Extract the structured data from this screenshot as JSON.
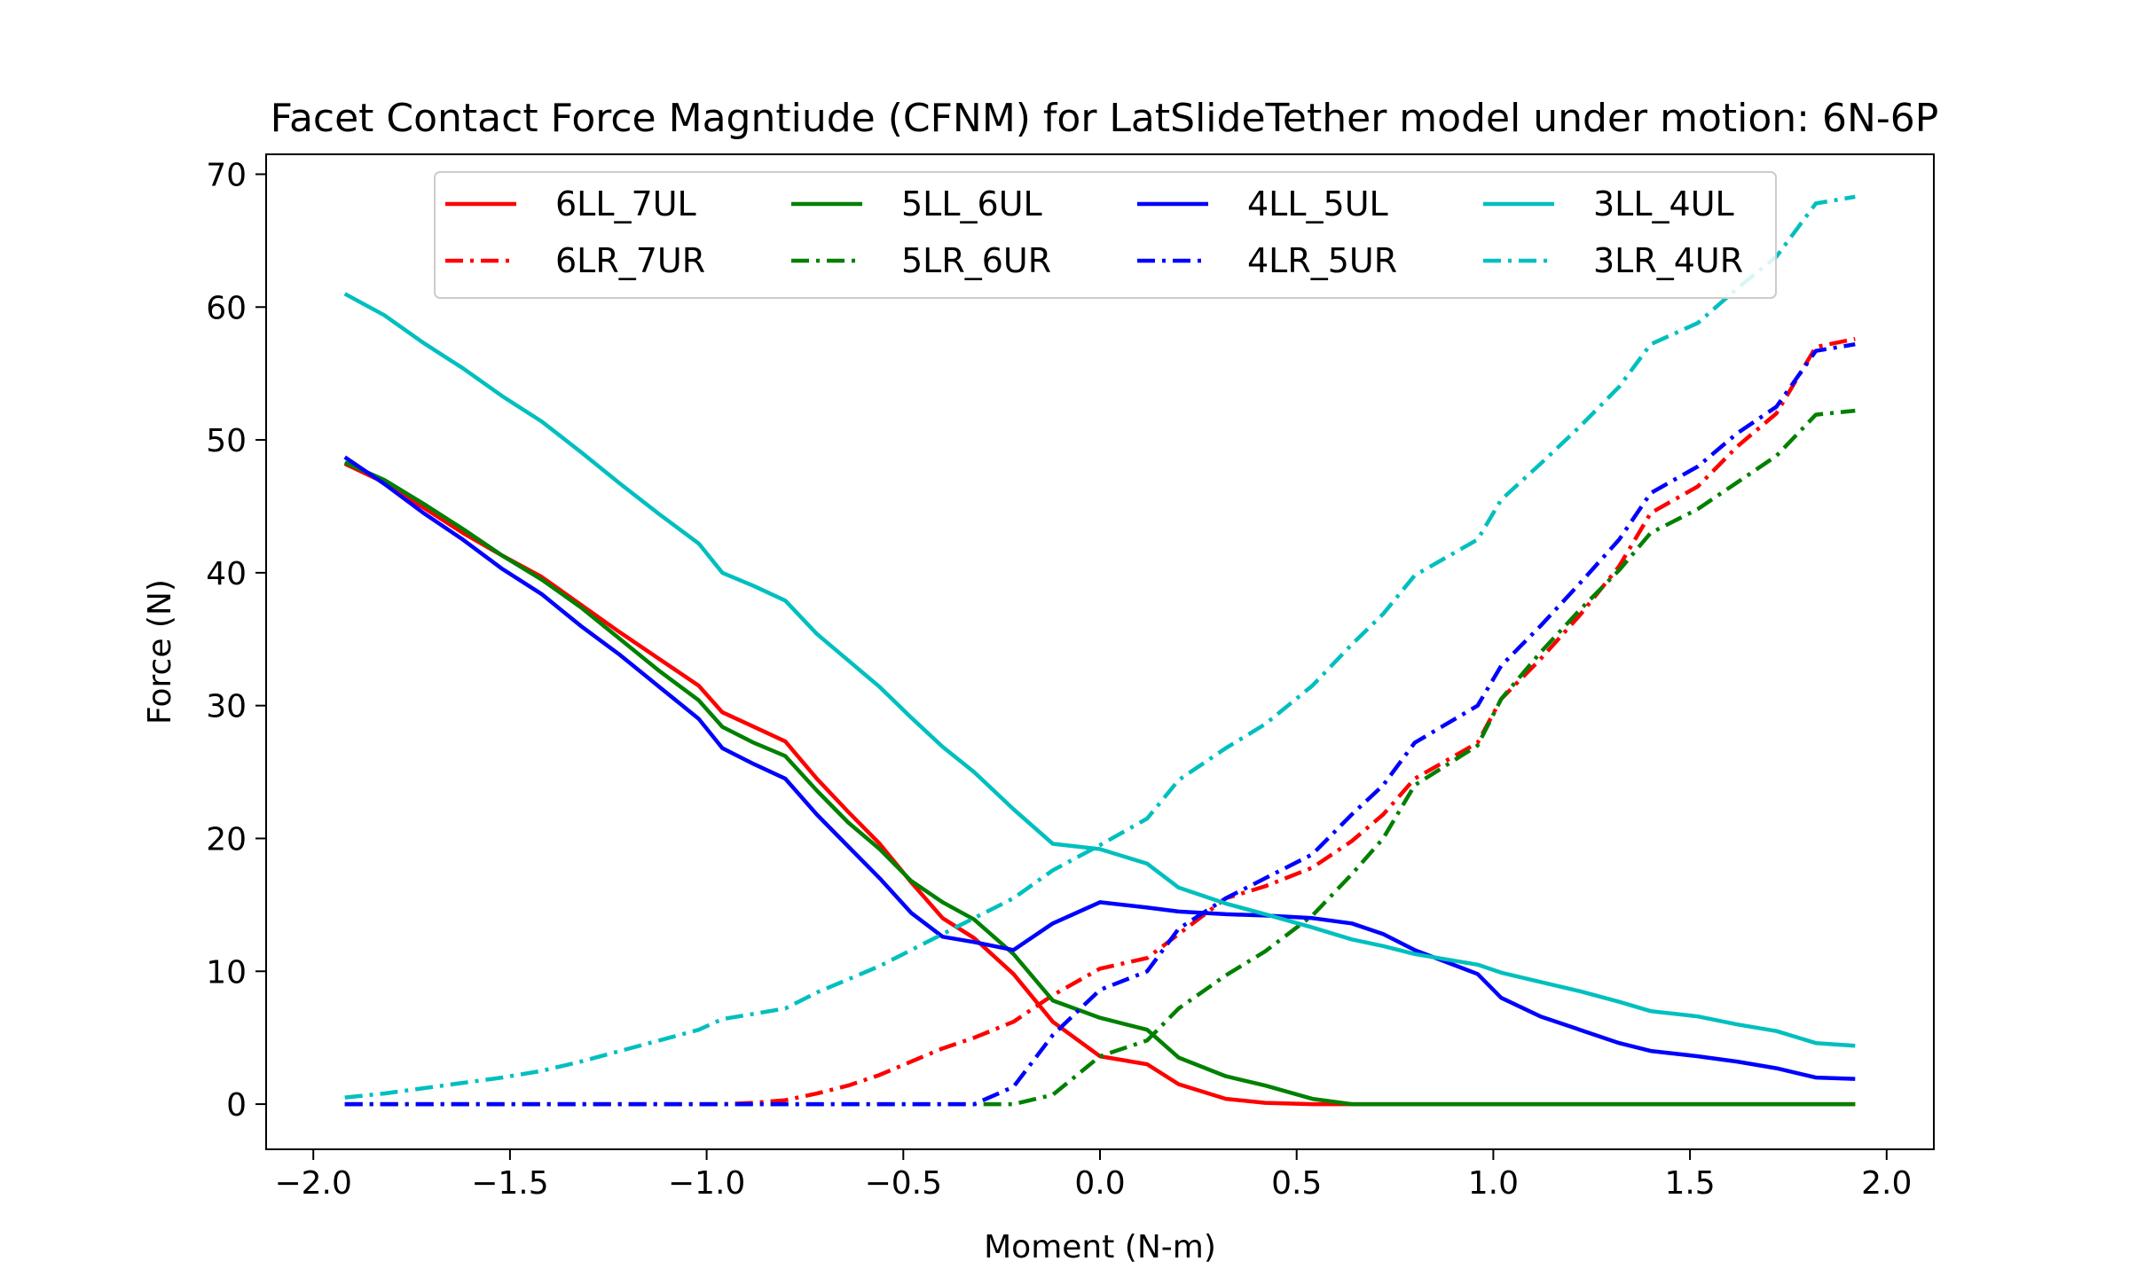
{
  "chart_data": {
    "type": "line",
    "title": "Facet Contact Force Magntiude (CFNM) for LatSlideTether model under motion: 6N-6P",
    "xlabel": "Moment (N-m)",
    "ylabel": "Force (N)",
    "xlim": [
      -2.12,
      2.12
    ],
    "ylim": [
      -3.4,
      71.5
    ],
    "xticks": [
      -2.0,
      -1.5,
      -1.0,
      -0.5,
      0.0,
      0.5,
      1.0,
      1.5,
      2.0
    ],
    "xtick_labels": [
      "−2.0",
      "−1.5",
      "−1.0",
      "−0.5",
      "0.0",
      "0.5",
      "1.0",
      "1.5",
      "2.0"
    ],
    "yticks": [
      0,
      10,
      20,
      30,
      40,
      50,
      60,
      70
    ],
    "ytick_labels": [
      "0",
      "10",
      "20",
      "30",
      "40",
      "50",
      "60",
      "70"
    ],
    "grid": false,
    "legend_position": "top-center",
    "x": [
      -1.92,
      -1.82,
      -1.72,
      -1.62,
      -1.52,
      -1.42,
      -1.32,
      -1.22,
      -1.12,
      -1.02,
      -0.96,
      -0.88,
      -0.8,
      -0.72,
      -0.64,
      -0.56,
      -0.48,
      -0.4,
      -0.32,
      -0.22,
      -0.12,
      0.0,
      0.12,
      0.2,
      0.32,
      0.42,
      0.54,
      0.64,
      0.72,
      0.8,
      0.96,
      1.02,
      1.12,
      1.22,
      1.32,
      1.4,
      1.52,
      1.62,
      1.72,
      1.82,
      1.92
    ],
    "series": [
      {
        "name": "6LL_7UL",
        "color": "#ff0000",
        "dash": "solid",
        "values": [
          48.2,
          46.8,
          44.9,
          43.0,
          41.3,
          39.7,
          37.6,
          35.5,
          33.5,
          31.5,
          29.5,
          28.4,
          27.3,
          24.5,
          22.0,
          19.6,
          16.7,
          14.0,
          12.5,
          9.8,
          6.2,
          3.6,
          3.0,
          1.5,
          0.4,
          0.1,
          0.0,
          0.0,
          0.0,
          0.0,
          0.0,
          0.0,
          0.0,
          0.0,
          0.0,
          0.0,
          0.0,
          0.0,
          0.0,
          0.0,
          0.0
        ]
      },
      {
        "name": "6LR_7UR",
        "color": "#ff0000",
        "dash": "dashdot",
        "values": [
          0.0,
          0.0,
          0.0,
          0.0,
          0.0,
          0.0,
          0.0,
          0.0,
          0.0,
          0.0,
          0.0,
          0.1,
          0.3,
          0.8,
          1.4,
          2.2,
          3.2,
          4.2,
          5.0,
          6.2,
          8.2,
          10.2,
          11.0,
          12.8,
          15.5,
          16.4,
          17.8,
          19.8,
          21.8,
          24.5,
          27.2,
          30.5,
          33.5,
          36.8,
          40.5,
          44.5,
          46.5,
          49.5,
          52.0,
          57.0,
          57.6
        ]
      },
      {
        "name": "5LL_6UL",
        "color": "#008000",
        "dash": "solid",
        "values": [
          48.3,
          47.0,
          45.2,
          43.3,
          41.3,
          39.5,
          37.4,
          35.0,
          32.6,
          30.4,
          28.4,
          27.2,
          26.2,
          23.6,
          21.2,
          19.2,
          16.8,
          15.2,
          13.9,
          11.3,
          7.8,
          6.5,
          5.6,
          3.5,
          2.1,
          1.4,
          0.4,
          0.0,
          0.0,
          0.0,
          0.0,
          0.0,
          0.0,
          0.0,
          0.0,
          0.0,
          0.0,
          0.0,
          0.0,
          0.0,
          0.0
        ]
      },
      {
        "name": "5LR_6UR",
        "color": "#008000",
        "dash": "dashdot",
        "values": [
          0.0,
          0.0,
          0.0,
          0.0,
          0.0,
          0.0,
          0.0,
          0.0,
          0.0,
          0.0,
          0.0,
          0.0,
          0.0,
          0.0,
          0.0,
          0.0,
          0.0,
          0.0,
          0.0,
          0.0,
          0.7,
          3.6,
          4.8,
          7.2,
          9.7,
          11.5,
          14.2,
          17.3,
          20.0,
          24.0,
          27.0,
          30.5,
          34.0,
          37.2,
          40.2,
          43.0,
          44.8,
          46.8,
          48.8,
          51.9,
          52.2
        ]
      },
      {
        "name": "4LL_5UL",
        "color": "#0000ff",
        "dash": "solid",
        "values": [
          48.7,
          46.7,
          44.5,
          42.5,
          40.3,
          38.4,
          36.0,
          33.8,
          31.4,
          29.0,
          26.8,
          25.6,
          24.5,
          21.8,
          19.4,
          17.0,
          14.4,
          12.6,
          12.2,
          11.6,
          13.6,
          15.2,
          14.8,
          14.5,
          14.3,
          14.2,
          14.0,
          13.6,
          12.8,
          11.6,
          9.8,
          8.0,
          6.6,
          5.6,
          4.6,
          4.0,
          3.6,
          3.2,
          2.7,
          2.0,
          1.9
        ]
      },
      {
        "name": "4LR_5UR",
        "color": "#0000ff",
        "dash": "dashdot",
        "values": [
          0.0,
          0.0,
          0.0,
          0.0,
          0.0,
          0.0,
          0.0,
          0.0,
          0.0,
          0.0,
          0.0,
          0.0,
          0.0,
          0.0,
          0.0,
          0.0,
          0.0,
          0.0,
          0.0,
          1.3,
          5.2,
          8.6,
          10.0,
          13.2,
          15.5,
          17.0,
          18.8,
          21.8,
          24.0,
          27.2,
          30.0,
          33.0,
          36.0,
          39.2,
          42.5,
          46.0,
          48.0,
          50.5,
          52.5,
          56.7,
          57.2
        ]
      },
      {
        "name": "3LL_4UL",
        "color": "#00bfbf",
        "dash": "solid",
        "values": [
          61.0,
          59.4,
          57.3,
          55.4,
          53.3,
          51.4,
          49.1,
          46.7,
          44.4,
          42.2,
          40.0,
          39.0,
          37.9,
          35.4,
          33.4,
          31.4,
          29.1,
          26.9,
          25.0,
          22.2,
          19.6,
          19.2,
          18.1,
          16.3,
          15.1,
          14.3,
          13.3,
          12.4,
          11.9,
          11.3,
          10.5,
          9.9,
          9.2,
          8.5,
          7.7,
          7.0,
          6.6,
          6.0,
          5.5,
          4.6,
          4.4
        ]
      },
      {
        "name": "3LR_4UR",
        "color": "#00bfbf",
        "dash": "dashdot",
        "values": [
          0.5,
          0.8,
          1.2,
          1.6,
          2.0,
          2.5,
          3.2,
          4.0,
          4.8,
          5.6,
          6.4,
          6.8,
          7.2,
          8.4,
          9.4,
          10.4,
          11.6,
          12.8,
          14.0,
          15.5,
          17.6,
          19.5,
          21.5,
          24.4,
          26.8,
          28.6,
          31.5,
          34.6,
          36.9,
          39.8,
          42.5,
          45.5,
          48.2,
          51.0,
          54.0,
          57.2,
          58.8,
          61.4,
          63.8,
          67.8,
          68.3
        ]
      }
    ]
  }
}
